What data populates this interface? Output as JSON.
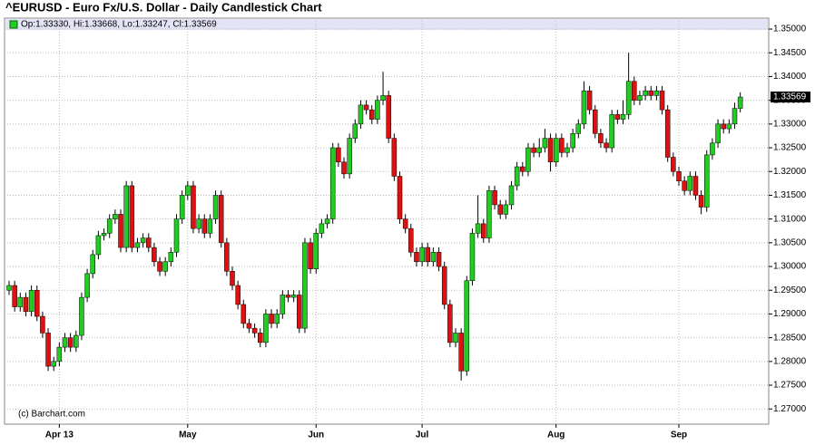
{
  "chart_data": {
    "type": "candlestick",
    "title": "^EURUSD - Euro Fx/U.S. Dollar - Daily Candlestick Chart",
    "legend": "Op:1.33330, Hi:1.33668, Lo:1.33247, Cl:1.33569",
    "watermark": "(c) Barchart.com",
    "last_label": "1.33569",
    "up_color": "#22cc22",
    "down_color": "#dd1111",
    "grid": true,
    "ylim": [
      1.2668,
      1.3523
    ],
    "yticks": [
      {
        "value": 1.27,
        "label": "1.27000"
      },
      {
        "value": 1.275,
        "label": "1.27500"
      },
      {
        "value": 1.28,
        "label": "1.28000"
      },
      {
        "value": 1.285,
        "label": "1.28500"
      },
      {
        "value": 1.29,
        "label": "1.29000"
      },
      {
        "value": 1.295,
        "label": "1.29500"
      },
      {
        "value": 1.3,
        "label": "1.30000"
      },
      {
        "value": 1.305,
        "label": "1.30500"
      },
      {
        "value": 1.31,
        "label": "1.31000"
      },
      {
        "value": 1.315,
        "label": "1.31500"
      },
      {
        "value": 1.32,
        "label": "1.32000"
      },
      {
        "value": 1.325,
        "label": "1.32500"
      },
      {
        "value": 1.33,
        "label": "1.33000"
      },
      {
        "value": 1.335,
        "label": "1.33500"
      },
      {
        "value": 1.34,
        "label": "1.34000"
      },
      {
        "value": 1.345,
        "label": "1.34500"
      },
      {
        "value": 1.35,
        "label": "1.35000"
      }
    ],
    "categories": [
      null,
      null,
      null,
      null,
      null,
      null,
      null,
      null,
      null,
      "Apr 13",
      null,
      null,
      null,
      null,
      null,
      null,
      null,
      null,
      null,
      null,
      null,
      null,
      null,
      null,
      null,
      null,
      null,
      null,
      null,
      null,
      null,
      null,
      "May",
      null,
      null,
      null,
      null,
      null,
      null,
      null,
      null,
      null,
      null,
      null,
      null,
      null,
      null,
      null,
      null,
      null,
      null,
      null,
      null,
      null,
      null,
      "Jun",
      null,
      null,
      null,
      null,
      null,
      null,
      null,
      null,
      null,
      null,
      null,
      null,
      null,
      null,
      null,
      null,
      null,
      null,
      "Jul",
      null,
      null,
      null,
      null,
      null,
      null,
      null,
      null,
      null,
      null,
      null,
      null,
      null,
      null,
      null,
      null,
      null,
      null,
      null,
      null,
      null,
      null,
      null,
      "Aug",
      null,
      null,
      null,
      null,
      null,
      null,
      null,
      null,
      null,
      null,
      null,
      null,
      null,
      null,
      null,
      null,
      null,
      null,
      null,
      null,
      null,
      "Sep",
      null,
      null,
      null,
      null,
      null,
      null,
      null,
      null,
      null,
      null,
      null
    ],
    "open": [
      1.295,
      1.296,
      1.2915,
      1.2935,
      1.2905,
      1.295,
      1.2895,
      1.286,
      1.279,
      1.28,
      1.283,
      1.285,
      1.283,
      1.2855,
      1.2935,
      1.2985,
      1.3025,
      1.3065,
      1.307,
      1.31,
      1.311,
      1.304,
      1.317,
      1.304,
      1.305,
      1.306,
      1.304,
      1.301,
      1.299,
      1.301,
      1.303,
      1.31,
      1.315,
      1.317,
      1.308,
      1.31,
      1.307,
      1.31,
      1.315,
      1.305,
      1.299,
      1.296,
      1.292,
      1.288,
      1.287,
      1.286,
      1.284,
      1.29,
      1.288,
      1.29,
      1.294,
      1.2935,
      1.294,
      1.287,
      1.305,
      1.2995,
      1.307,
      1.309,
      1.31,
      1.325,
      1.322,
      1.3195,
      1.327,
      1.33,
      1.334,
      1.333,
      1.331,
      1.335,
      1.336,
      1.327,
      1.319,
      1.31,
      1.308,
      1.303,
      1.301,
      1.304,
      1.301,
      1.303,
      1.3,
      1.292,
      1.284,
      1.286,
      1.278,
      1.297,
      1.307,
      1.309,
      1.306,
      1.316,
      1.313,
      1.311,
      1.313,
      1.317,
      1.321,
      1.32,
      1.325,
      1.324,
      1.325,
      1.327,
      1.322,
      1.327,
      1.324,
      1.325,
      1.328,
      1.33,
      1.337,
      1.333,
      1.328,
      1.326,
      1.325,
      1.332,
      1.331,
      1.332,
      1.339,
      1.335,
      1.336,
      1.337,
      1.336,
      1.337,
      1.333,
      1.323,
      1.32,
      1.318,
      1.316,
      1.319,
      1.315,
      1.3125,
      1.3235,
      1.326,
      1.33,
      1.329,
      1.33,
      1.3333
    ],
    "high": [
      1.297,
      1.297,
      1.2945,
      1.2945,
      1.296,
      1.296,
      1.2905,
      1.287,
      1.281,
      1.284,
      1.286,
      1.286,
      1.2865,
      1.2945,
      1.2995,
      1.3035,
      1.3075,
      1.308,
      1.311,
      1.312,
      1.312,
      1.318,
      1.318,
      1.306,
      1.307,
      1.307,
      1.305,
      1.302,
      1.302,
      1.304,
      1.311,
      1.316,
      1.318,
      1.318,
      1.311,
      1.311,
      1.311,
      1.316,
      1.316,
      1.306,
      1.3,
      1.297,
      1.293,
      1.289,
      1.288,
      1.287,
      1.291,
      1.291,
      1.291,
      1.295,
      1.295,
      1.295,
      1.295,
      1.306,
      1.306,
      1.308,
      1.31,
      1.311,
      1.326,
      1.326,
      1.323,
      1.328,
      1.331,
      1.335,
      1.335,
      1.334,
      1.336,
      1.341,
      1.337,
      1.328,
      1.32,
      1.311,
      1.309,
      1.304,
      1.305,
      1.305,
      1.304,
      1.304,
      1.301,
      1.293,
      1.287,
      1.287,
      1.298,
      1.308,
      1.315,
      1.31,
      1.317,
      1.317,
      1.314,
      1.314,
      1.318,
      1.322,
      1.322,
      1.326,
      1.326,
      1.327,
      1.329,
      1.328,
      1.328,
      1.328,
      1.326,
      1.329,
      1.331,
      1.339,
      1.338,
      1.334,
      1.329,
      1.327,
      1.333,
      1.333,
      1.335,
      1.345,
      1.34,
      1.337,
      1.338,
      1.338,
      1.338,
      1.338,
      1.334,
      1.324,
      1.321,
      1.319,
      1.32,
      1.32,
      1.316,
      1.3245,
      1.327,
      1.331,
      1.331,
      1.331,
      1.3345,
      1.33668
    ],
    "low": [
      1.294,
      1.2905,
      1.2905,
      1.2895,
      1.2895,
      1.2885,
      1.285,
      1.278,
      1.278,
      1.279,
      1.282,
      1.282,
      1.282,
      1.2845,
      1.2925,
      1.2975,
      1.3015,
      1.3055,
      1.306,
      1.309,
      1.303,
      1.303,
      1.303,
      1.303,
      1.304,
      1.303,
      1.3,
      1.298,
      1.298,
      1.3,
      1.302,
      1.309,
      1.314,
      1.307,
      1.307,
      1.306,
      1.306,
      1.309,
      1.304,
      1.298,
      1.295,
      1.291,
      1.287,
      1.286,
      1.285,
      1.283,
      1.283,
      1.287,
      1.287,
      1.289,
      1.2925,
      1.2925,
      1.286,
      1.286,
      1.2985,
      1.2985,
      1.306,
      1.308,
      1.309,
      1.321,
      1.3185,
      1.3185,
      1.326,
      1.329,
      1.332,
      1.33,
      1.33,
      1.334,
      1.326,
      1.318,
      1.309,
      1.307,
      1.302,
      1.3,
      1.3,
      1.3,
      1.3,
      1.299,
      1.291,
      1.283,
      1.283,
      1.276,
      1.277,
      1.296,
      1.306,
      1.305,
      1.305,
      1.312,
      1.31,
      1.31,
      1.312,
      1.316,
      1.319,
      1.319,
      1.323,
      1.323,
      1.324,
      1.32,
      1.321,
      1.323,
      1.323,
      1.324,
      1.327,
      1.329,
      1.332,
      1.327,
      1.325,
      1.324,
      1.324,
      1.33,
      1.33,
      1.331,
      1.334,
      1.334,
      1.335,
      1.335,
      1.335,
      1.332,
      1.322,
      1.319,
      1.317,
      1.315,
      1.315,
      1.314,
      1.311,
      1.3115,
      1.3225,
      1.325,
      1.328,
      1.328,
      1.329,
      1.33247
    ],
    "close": [
      1.296,
      1.2915,
      1.2935,
      1.2905,
      1.295,
      1.2895,
      1.286,
      1.279,
      1.28,
      1.283,
      1.285,
      1.283,
      1.2855,
      1.2935,
      1.2985,
      1.3025,
      1.3065,
      1.307,
      1.31,
      1.311,
      1.304,
      1.317,
      1.304,
      1.305,
      1.306,
      1.304,
      1.301,
      1.299,
      1.301,
      1.303,
      1.31,
      1.315,
      1.317,
      1.308,
      1.31,
      1.307,
      1.31,
      1.315,
      1.305,
      1.299,
      1.296,
      1.292,
      1.288,
      1.287,
      1.286,
      1.284,
      1.29,
      1.288,
      1.29,
      1.294,
      1.2935,
      1.294,
      1.287,
      1.305,
      1.2995,
      1.307,
      1.309,
      1.31,
      1.325,
      1.322,
      1.3195,
      1.327,
      1.33,
      1.334,
      1.333,
      1.331,
      1.335,
      1.336,
      1.327,
      1.319,
      1.31,
      1.308,
      1.303,
      1.301,
      1.304,
      1.301,
      1.303,
      1.3,
      1.292,
      1.284,
      1.286,
      1.278,
      1.297,
      1.307,
      1.309,
      1.306,
      1.316,
      1.313,
      1.311,
      1.313,
      1.317,
      1.321,
      1.32,
      1.325,
      1.324,
      1.325,
      1.327,
      1.322,
      1.327,
      1.324,
      1.325,
      1.328,
      1.33,
      1.337,
      1.333,
      1.328,
      1.326,
      1.325,
      1.332,
      1.331,
      1.332,
      1.339,
      1.335,
      1.336,
      1.337,
      1.336,
      1.337,
      1.333,
      1.323,
      1.32,
      1.318,
      1.316,
      1.319,
      1.315,
      1.3125,
      1.3235,
      1.326,
      1.33,
      1.329,
      1.33,
      1.3333,
      1.33569
    ]
  }
}
